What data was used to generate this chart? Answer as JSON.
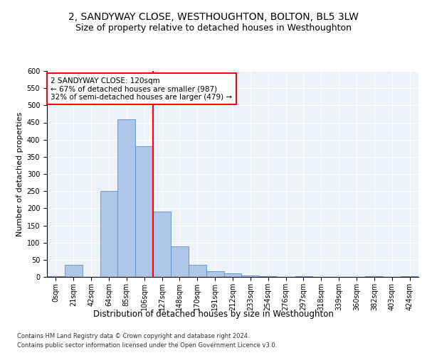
{
  "title": "2, SANDYWAY CLOSE, WESTHOUGHTON, BOLTON, BL5 3LW",
  "subtitle": "Size of property relative to detached houses in Westhoughton",
  "xlabel": "Distribution of detached houses by size in Westhoughton",
  "ylabel": "Number of detached properties",
  "footnote1": "Contains HM Land Registry data © Crown copyright and database right 2024.",
  "footnote2": "Contains public sector information licensed under the Open Government Licence v3.0.",
  "bar_labels": [
    "0sqm",
    "21sqm",
    "42sqm",
    "64sqm",
    "85sqm",
    "106sqm",
    "127sqm",
    "148sqm",
    "170sqm",
    "191sqm",
    "212sqm",
    "233sqm",
    "254sqm",
    "276sqm",
    "297sqm",
    "318sqm",
    "339sqm",
    "360sqm",
    "382sqm",
    "403sqm",
    "424sqm"
  ],
  "bar_values": [
    2,
    35,
    0,
    250,
    460,
    380,
    190,
    90,
    35,
    17,
    10,
    5,
    2,
    0,
    3,
    0,
    0,
    0,
    2,
    0,
    2
  ],
  "bar_color": "#aec6e8",
  "bar_edge_color": "#5a8fc2",
  "vline_x": 5.5,
  "vline_color": "red",
  "annotation_line1": "2 SANDYWAY CLOSE: 120sqm",
  "annotation_line2": "← 67% of detached houses are smaller (987)",
  "annotation_line3": "32% of semi-detached houses are larger (479) →",
  "annotation_box_color": "white",
  "annotation_box_edge": "red",
  "ylim": [
    0,
    600
  ],
  "yticks": [
    0,
    50,
    100,
    150,
    200,
    250,
    300,
    350,
    400,
    450,
    500,
    550,
    600
  ],
  "background_color": "#eef2f9",
  "grid_color": "white",
  "title_fontsize": 10,
  "subtitle_fontsize": 9,
  "xlabel_fontsize": 8.5,
  "ylabel_fontsize": 8,
  "tick_fontsize": 7,
  "annotation_fontsize": 7.5,
  "footnote_fontsize": 6
}
